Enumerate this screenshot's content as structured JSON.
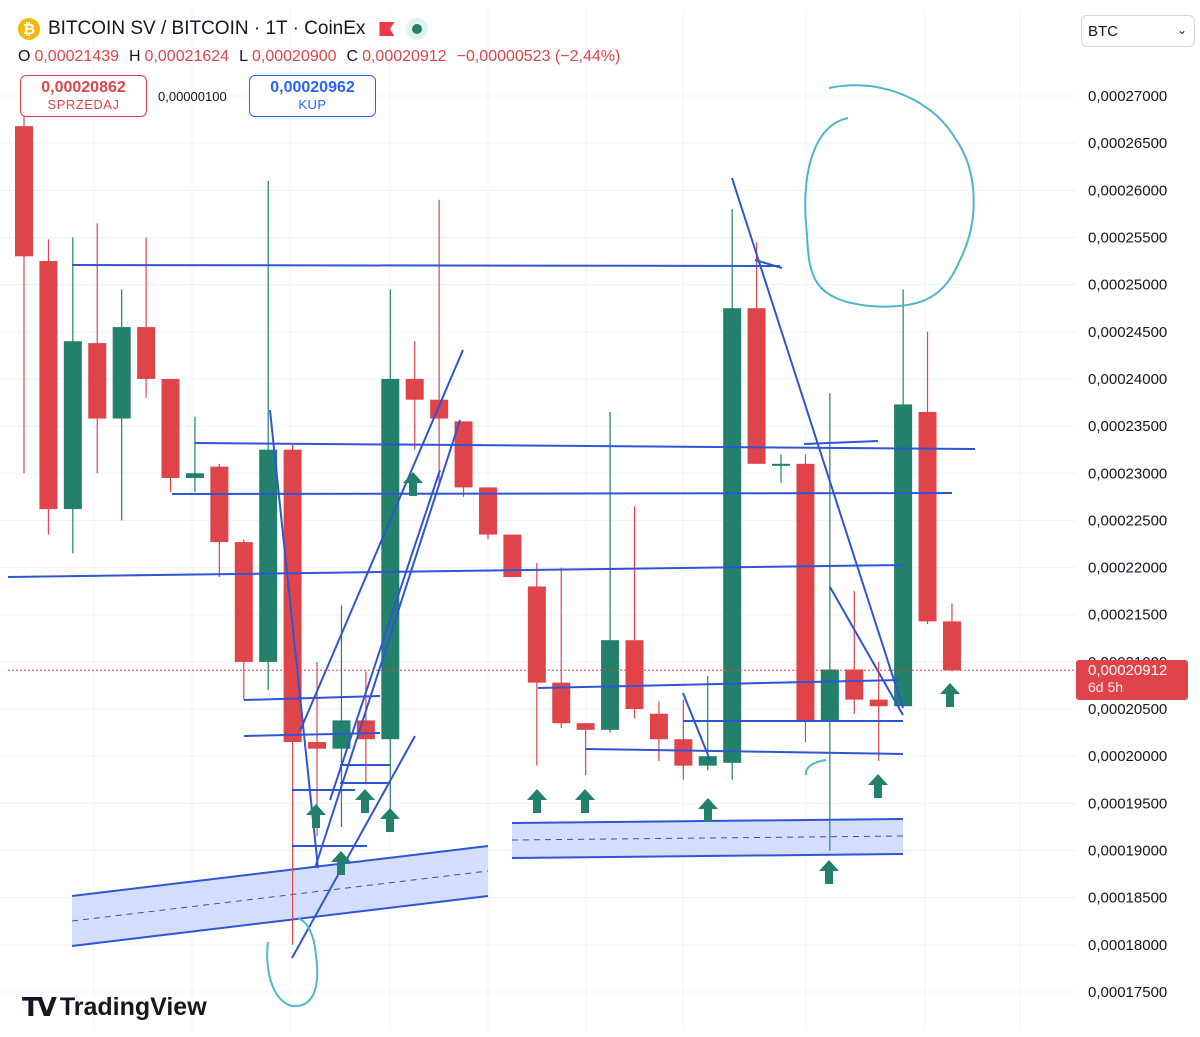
{
  "header": {
    "coin_symbol": "₿",
    "title": "BITCOIN SV / BITCOIN · 1T · CoinEx"
  },
  "ohlc": {
    "o_label": "O",
    "o": "0,00021439",
    "h_label": "H",
    "h": "0,00021624",
    "l_label": "L",
    "l": "0,00020900",
    "c_label": "C",
    "c": "0,00020912",
    "change": "−0,00000523 (−2,44%)"
  },
  "trade": {
    "sell_price": "0,00020862",
    "sell_label": "SPRZEDAJ",
    "spread": "0,00000100",
    "buy_price": "0,00020962",
    "buy_label": "KUP"
  },
  "currency_select": {
    "value": "BTC"
  },
  "price_badge": {
    "price": "0,00020912",
    "countdown": "6d 5h"
  },
  "branding": {
    "logo_text": "TradingView"
  },
  "colors": {
    "up": "#22806b",
    "down": "#e0444b",
    "line": "#2f55d4",
    "hand": "#4bb8c8"
  },
  "chart_data": {
    "type": "candlestick",
    "yrange": [
      0.0001725,
      0.000276
    ],
    "y_ticks": [
      "0,00027000",
      "0,00026500",
      "0,00026000",
      "0,00025500",
      "0,00025000",
      "0,00024500",
      "0,00024000",
      "0,00023500",
      "0,00023000",
      "0,00022500",
      "0,00022000",
      "0,00021500",
      "0,00021000",
      "0,00020500",
      "0,00020000",
      "0,00019500",
      "0,00019000",
      "0,00018500",
      "0,00018000",
      "0,00017500"
    ],
    "y_tick_values": [
      0.00027,
      0.000265,
      0.00026,
      0.000255,
      0.00025,
      0.000245,
      0.00024,
      0.000235,
      0.00023,
      0.000225,
      0.00022,
      0.000215,
      0.00021,
      0.000205,
      0.0002,
      0.000195,
      0.00019,
      0.000185,
      0.00018,
      0.000175
    ],
    "current_price": 0.00020912,
    "grid": true,
    "candles": [
      {
        "o": 0.0002668,
        "h": 0.000268,
        "l": 0.00023,
        "c": 0.000253
      },
      {
        "o": 0.0002525,
        "h": 0.0002548,
        "l": 0.0002235,
        "c": 0.0002262
      },
      {
        "o": 0.0002262,
        "h": 0.000255,
        "l": 0.0002215,
        "c": 0.000244
      },
      {
        "o": 0.0002438,
        "h": 0.0002565,
        "l": 0.00023,
        "c": 0.0002358
      },
      {
        "o": 0.0002358,
        "h": 0.0002495,
        "l": 0.000225,
        "c": 0.0002455
      },
      {
        "o": 0.0002455,
        "h": 0.000255,
        "l": 0.000238,
        "c": 0.00024
      },
      {
        "o": 0.00024,
        "h": 0.00024,
        "l": 0.000228,
        "c": 0.0002295
      },
      {
        "o": 0.0002295,
        "h": 0.000236,
        "l": 0.000228,
        "c": 0.00023
      },
      {
        "o": 0.0002307,
        "h": 0.000231,
        "l": 0.000219,
        "c": 0.0002227
      },
      {
        "o": 0.0002227,
        "h": 0.000223,
        "l": 0.000206,
        "c": 0.00021
      },
      {
        "o": 0.00021,
        "h": 0.000261,
        "l": 0.000207,
        "c": 0.0002325
      },
      {
        "o": 0.0002325,
        "h": 0.000233,
        "l": 0.00018,
        "c": 0.0002015
      },
      {
        "o": 0.0002015,
        "h": 0.00021,
        "l": 0.0001915,
        "c": 0.0002008
      },
      {
        "o": 0.0002008,
        "h": 0.000216,
        "l": 0.0001925,
        "c": 0.0002038
      },
      {
        "o": 0.0002038,
        "h": 0.000209,
        "l": 0.000197,
        "c": 0.0002018
      },
      {
        "o": 0.0002018,
        "h": 0.0002495,
        "l": 0.000192,
        "c": 0.00024
      },
      {
        "o": 0.00024,
        "h": 0.000244,
        "l": 0.0002325,
        "c": 0.0002378
      },
      {
        "o": 0.0002378,
        "h": 0.000259,
        "l": 0.000229,
        "c": 0.0002358
      },
      {
        "o": 0.0002355,
        "h": 0.0002355,
        "l": 0.0002275,
        "c": 0.0002285
      },
      {
        "o": 0.0002285,
        "h": 0.0002285,
        "l": 0.000223,
        "c": 0.0002235
      },
      {
        "o": 0.0002235,
        "h": 0.0002235,
        "l": 0.000219,
        "c": 0.000219
      },
      {
        "o": 0.000218,
        "h": 0.0002205,
        "l": 0.000199,
        "c": 0.0002078
      },
      {
        "o": 0.0002078,
        "h": 0.00022,
        "l": 0.000203,
        "c": 0.0002035
      },
      {
        "o": 0.0002035,
        "h": 0.0002035,
        "l": 0.000198,
        "c": 0.0002028
      },
      {
        "o": 0.0002028,
        "h": 0.0002365,
        "l": 0.0002025,
        "c": 0.0002123
      },
      {
        "o": 0.0002123,
        "h": 0.0002265,
        "l": 0.000204,
        "c": 0.000205
      },
      {
        "o": 0.0002045,
        "h": 0.0002058,
        "l": 0.0001995,
        "c": 0.0002018
      },
      {
        "o": 0.0002018,
        "h": 0.000206,
        "l": 0.0001975,
        "c": 0.000199
      },
      {
        "o": 0.000199,
        "h": 0.0002085,
        "l": 0.0001985,
        "c": 0.0002
      },
      {
        "o": 0.0001993,
        "h": 0.000258,
        "l": 0.0001975,
        "c": 0.0002475
      },
      {
        "o": 0.0002475,
        "h": 0.0002545,
        "l": 0.000231,
        "c": 0.000231
      },
      {
        "o": 0.000231,
        "h": 0.000232,
        "l": 0.000229,
        "c": 0.000231
      },
      {
        "o": 0.000231,
        "h": 0.000232,
        "l": 0.0002015,
        "c": 0.0002038
      },
      {
        "o": 0.0002038,
        "h": 0.0002385,
        "l": 0.00019,
        "c": 0.0002092
      },
      {
        "o": 0.0002092,
        "h": 0.0002175,
        "l": 0.0002045,
        "c": 0.000206
      },
      {
        "o": 0.000206,
        "h": 0.00021,
        "l": 0.0001995,
        "c": 0.0002053
      },
      {
        "o": 0.0002053,
        "h": 0.0002495,
        "l": 0.0002053,
        "c": 0.0002373
      },
      {
        "o": 0.0002365,
        "h": 0.000245,
        "l": 0.000214,
        "c": 0.0002143
      },
      {
        "o": 0.0002143,
        "h": 0.0002162,
        "l": 0.000209,
        "c": 0.0002091
      }
    ]
  }
}
